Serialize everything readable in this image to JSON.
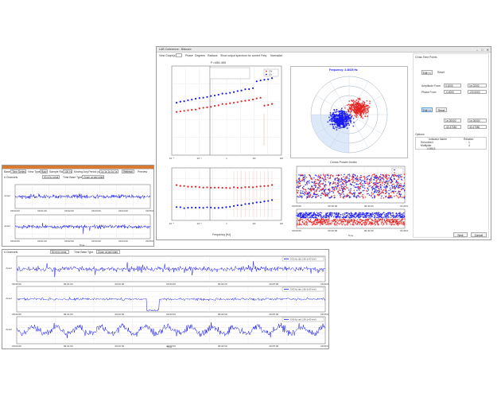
{
  "analysis_window": {
    "title": "LAB Coherence - Bitsourc",
    "chart_title": "F=456.400",
    "freq_readout": "Frequency: 4.46/25 Hz",
    "cross_title": "Cross Power Index",
    "x_label": "Frequency [Hz]",
    "time_label": "Time",
    "legend_ch1": "CH",
    "legend_ch2": "Ch",
    "toolbar": {
      "view": "View Graph(s)",
      "phase": "Phase",
      "degrees": "Degrees",
      "radians": "Radians",
      "show": "Show output spectrum for current Freq",
      "normalize": "Normalize"
    },
    "ticks": {
      "x_main": [
        "10⁻⁴",
        "10⁻²",
        "1",
        "10¹",
        "10²"
      ],
      "x_cross": [
        "00:00:00",
        "00:20:00",
        "00:40:00",
        "01:00:00"
      ]
    }
  },
  "side_panel": {
    "section1": "Cross Time Points",
    "btn_edit1": "Edit <<",
    "btn_reset1": "Reset",
    "amp_from_label": "Amplitude From",
    "amp_from": "0.1000",
    "amp_to": "1e-02/00",
    "phase_from_label": "Phase From",
    "phase_from": "-0.4000",
    "phase_to": "-2/0.0000",
    "btn_edit2": "Edit >>",
    "btn_reset2": "Reset",
    "amp_from2": "1e-00000",
    "amp_to2": "1e-00000",
    "phase_from2": "-40.47080",
    "phase_to2": "40.47080",
    "options": "Options",
    "table_headers": [
      "Indicator Name",
      "Relation"
    ],
    "table_rows": [
      [
        "Smoothed",
        "1"
      ],
      [
        "Multiplier",
        "4"
      ],
      [
        "4.8613",
        ""
      ]
    ],
    "btn_next": "Next",
    "btn_cancel": "Cancel"
  },
  "recorder_window": {
    "toolbar_row": {
      "field1_label": "Base",
      "field1": "Time Series",
      "field2_label": "View Type",
      "field2": "Raw",
      "field3_label": "Sample Rate",
      "field3": "100 Hz",
      "field4_label": "Moving Avg Period (s)",
      "field4": "1s 1s 1s 1s 1s",
      "btn_refresh": "Refresh",
      "chk_preview": "Preview"
    },
    "row2": {
      "label": "# Channels",
      "val": "100 Hz Vertical Scale Hz",
      "field": "50 m/s² peak",
      "zoom_label": "Time Base Type",
      "zoom": "Zoom at last sight"
    },
    "y_label": "Accel",
    "time_label": "Time",
    "x_ticks_top": [
      "09:00:00",
      "09:01:00",
      "09:02:00",
      "09:03:00",
      "09:04:00",
      "09:05:00"
    ]
  },
  "bottom_recorder": {
    "row": {
      "label": "# Channels",
      "val": "100 Hz Vertical Scale Hz",
      "field": "50 m/s² peak",
      "zoom_label": "Time Base Type",
      "zoom": "Zoom at last sight"
    },
    "y_label": "Accel",
    "time_label": "Time",
    "legends": [
      "CH1 Acc raw 1 (filt 1e-09 m/s²)",
      "CH2 Acc raw 1 (filt 1e-09 m/s²)",
      "CH3 Acc raw 1 (filt 1e-09 m/s²)"
    ],
    "x_ticks": [
      "09:00:00",
      "09:01:00",
      "09:02:00",
      "09:03:00",
      "09:04:00",
      "09:05:00",
      "09:06:00"
    ]
  },
  "colors": {
    "blue": "#1a1aee",
    "red": "#e52222",
    "frame": "#9a9a9a"
  }
}
